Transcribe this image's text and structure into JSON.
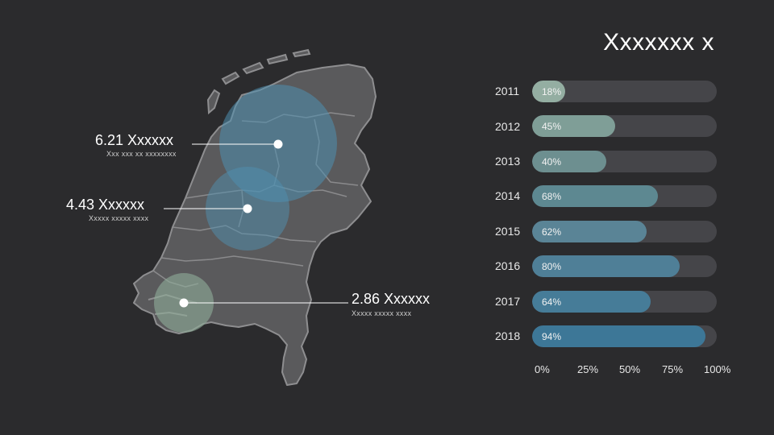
{
  "title": "Xxxxxxx x",
  "callouts": [
    {
      "value": "6.21 Xxxxxx",
      "caption": "Xxx xxx xx xxxxxxxx"
    },
    {
      "value": "4.43 Xxxxxx",
      "caption": "Xxxxx xxxxx xxxx"
    },
    {
      "value": "2.86 Xxxxxx",
      "caption": "Xxxxx xxxxx xxxx"
    }
  ],
  "colors": {
    "background": "#2b2b2d",
    "map_fill": "#5a5a5c",
    "map_stroke": "#8e8e90",
    "bubble_blue": "#4f8fb0",
    "bubble_green": "#8fae9a",
    "track": "#454549"
  },
  "chart_data": {
    "type": "bar",
    "orientation": "horizontal",
    "categories": [
      "2011",
      "2012",
      "2013",
      "2014",
      "2015",
      "2016",
      "2017",
      "2018"
    ],
    "values": [
      18,
      45,
      40,
      68,
      62,
      80,
      64,
      94
    ],
    "value_labels": [
      "18%",
      "45%",
      "40%",
      "68%",
      "62%",
      "80%",
      "64%",
      "94%"
    ],
    "bar_colors": [
      "#94aea2",
      "#7f9e97",
      "#6d8f90",
      "#5d8891",
      "#5a8496",
      "#4f7f97",
      "#467c98",
      "#3d7797"
    ],
    "xlim": [
      0,
      100
    ],
    "x_ticks": [
      "0%",
      "25%",
      "50%",
      "75%",
      "100%"
    ],
    "grid": false
  }
}
